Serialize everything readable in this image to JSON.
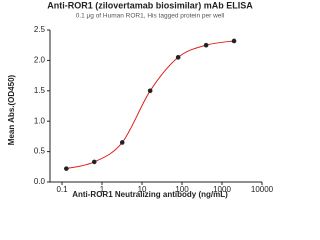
{
  "chart_data": {
    "type": "scatter",
    "title": "Anti-ROR1 (zilovertamab biosimilar) mAb ELISA",
    "subtitle": "0.1 μg of Human ROR1, His tagged protein per well",
    "x_label": "Anti-ROR1 Neutralizing antibody (ng/mL)",
    "y_label": "Mean Abs.(OD450)",
    "xscale": "log",
    "grid": false,
    "line_color": "#e0201b",
    "point_color": "#222222",
    "x": [
      0.128,
      0.64,
      3.2,
      16,
      80,
      400,
      2000
    ],
    "values": [
      0.22,
      0.33,
      0.65,
      1.5,
      2.05,
      2.25,
      2.32
    ],
    "xlim": [
      0.05,
      10000
    ],
    "xticks": [
      0.1,
      1,
      10,
      100,
      1000,
      10000
    ],
    "ylim": [
      0,
      2.5
    ],
    "yticks": [
      {
        "value": 0,
        "label": "0.0"
      },
      {
        "value": 0.5,
        "label": "0.5"
      },
      {
        "value": 1,
        "label": "1.0"
      },
      {
        "value": 1.5,
        "label": "1.5"
      },
      {
        "value": 2,
        "label": "2.0"
      },
      {
        "value": 2.5,
        "label": "2.5"
      }
    ]
  }
}
